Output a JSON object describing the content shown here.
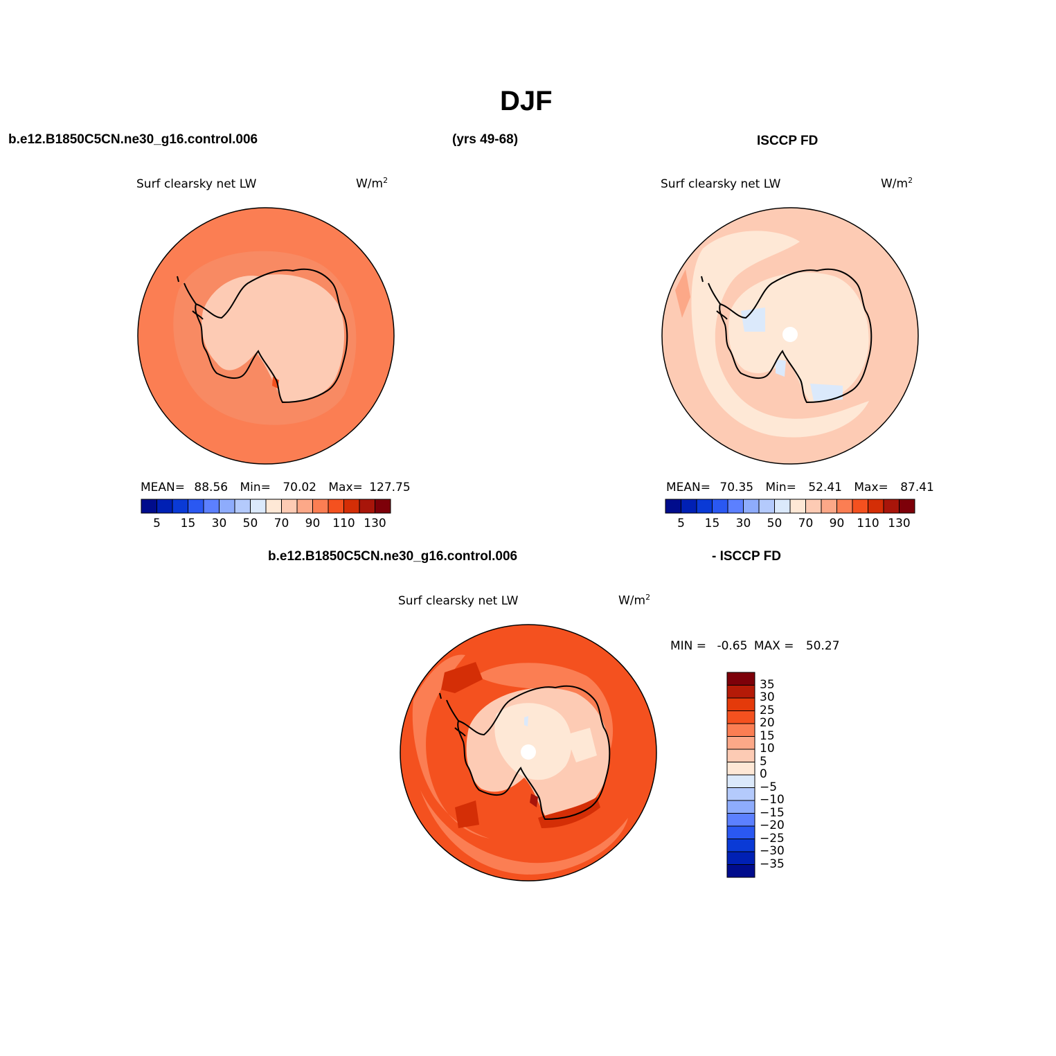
{
  "figure": {
    "season_title": "DJF"
  },
  "top_headers": {
    "case_name": "b.e12.B1850C5CN.ne30_g16.control.006",
    "years": "(yrs 49-68)",
    "obs_name": "ISCCP FD"
  },
  "panels": [
    {
      "variable": "Surf clearsky net LW",
      "units_base": "W/m",
      "units_exp": "2",
      "stats": {
        "mean_label": "MEAN=",
        "mean": "88.56",
        "min_label": "Min=",
        "min": "70.02",
        "max_label": "Max=",
        "max": "127.75"
      }
    },
    {
      "variable": "Surf clearsky net LW",
      "units_base": "W/m",
      "units_exp": "2",
      "stats": {
        "mean_label": "MEAN=",
        "mean": "70.35",
        "min_label": "Min=",
        "min": "52.41",
        "max_label": "Max=",
        "max": "87.41"
      }
    }
  ],
  "colorbar_main": {
    "colors": [
      "#000c8c",
      "#0020b4",
      "#0a3ad6",
      "#2a58f2",
      "#5c80ff",
      "#8eacfc",
      "#b4cafc",
      "#dbe9fb",
      "#fee8d6",
      "#fdcbb4",
      "#fca888",
      "#fb7e53",
      "#f4511f",
      "#d42e06",
      "#a8150a",
      "#7d0009"
    ],
    "tick_labels": [
      "5",
      "15",
      "30",
      "50",
      "70",
      "90",
      "110",
      "130"
    ]
  },
  "diff_header": {
    "case_name": "b.e12.B1850C5CN.ne30_g16.control.006",
    "obs_name": "- ISCCP FD"
  },
  "diff_panel": {
    "variable": "Surf clearsky net LW",
    "units_base": "W/m",
    "units_exp": "2",
    "min_label": "MIN =",
    "min": "-0.65",
    "max_label": "MAX =",
    "max": "50.27"
  },
  "colorbar_diff": {
    "colors": [
      "#7d0009",
      "#b41a07",
      "#e43a0a",
      "#f4511f",
      "#fb7e53",
      "#fca888",
      "#fdcbb4",
      "#fee8d6",
      "#dbe9fb",
      "#b4cafc",
      "#8eacfc",
      "#5c80ff",
      "#2a58f2",
      "#0a3ad6",
      "#0020b4",
      "#000c8c"
    ],
    "tick_labels": [
      "35",
      "30",
      "25",
      "20",
      "15",
      "10",
      "5",
      "0",
      "−5",
      "−10",
      "−15",
      "−20",
      "−25",
      "−30",
      "−35"
    ]
  },
  "map_colors": {
    "p1_ocean": "#fb7e53",
    "p1_ring": "#f88a63",
    "p1_land": "#fdcbb4",
    "p1_hot": "#f4511f",
    "p2_ocean": "#fdcbb4",
    "p2_light": "#fee8d6",
    "p2_cool": "#dbe9fb",
    "p2_warm": "#fca888",
    "d_outer": "#f4511f",
    "d_mid": "#fb7e53",
    "d_land": "#fdcbb4",
    "d_pale": "#fee8d6",
    "d_dark": "#d42e06",
    "d_darkest": "#a8150a",
    "d_light_blue": "#dbe9fb"
  }
}
